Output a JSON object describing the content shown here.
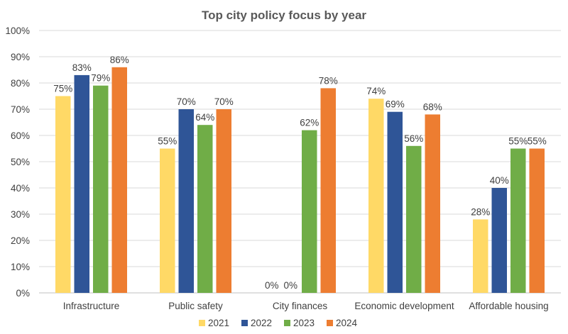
{
  "chart_data": {
    "type": "bar",
    "title": "Top city policy focus by year",
    "categories": [
      "Infrastructure",
      "Public safety",
      "City finances",
      "Economic development",
      "Affordable housing"
    ],
    "series": [
      {
        "name": "2021",
        "color": "#FFD966",
        "values": [
          75,
          55,
          0,
          74,
          28
        ],
        "labels": [
          "75%",
          "55%",
          "0%",
          "74%",
          "28%"
        ]
      },
      {
        "name": "2022",
        "color": "#2F5597",
        "values": [
          83,
          70,
          0,
          69,
          40
        ],
        "labels": [
          "83%",
          "70%",
          "0%",
          "69%",
          "40%"
        ]
      },
      {
        "name": "2023",
        "color": "#70AD47",
        "values": [
          79,
          64,
          62,
          56,
          55
        ],
        "labels": [
          "79%",
          "64%",
          "62%",
          "56%",
          "55%"
        ]
      },
      {
        "name": "2024",
        "color": "#ED7D31",
        "values": [
          86,
          70,
          78,
          68,
          55
        ],
        "labels": [
          "86%",
          "70%",
          "78%",
          "68%",
          "55%"
        ]
      }
    ],
    "ylim": [
      0,
      100
    ],
    "yticks": [
      0,
      10,
      20,
      30,
      40,
      50,
      60,
      70,
      80,
      90,
      100
    ],
    "ytick_labels": [
      "0%",
      "10%",
      "20%",
      "30%",
      "40%",
      "50%",
      "60%",
      "70%",
      "80%",
      "90%",
      "100%"
    ],
    "grid": true,
    "legend_position": "bottom"
  }
}
